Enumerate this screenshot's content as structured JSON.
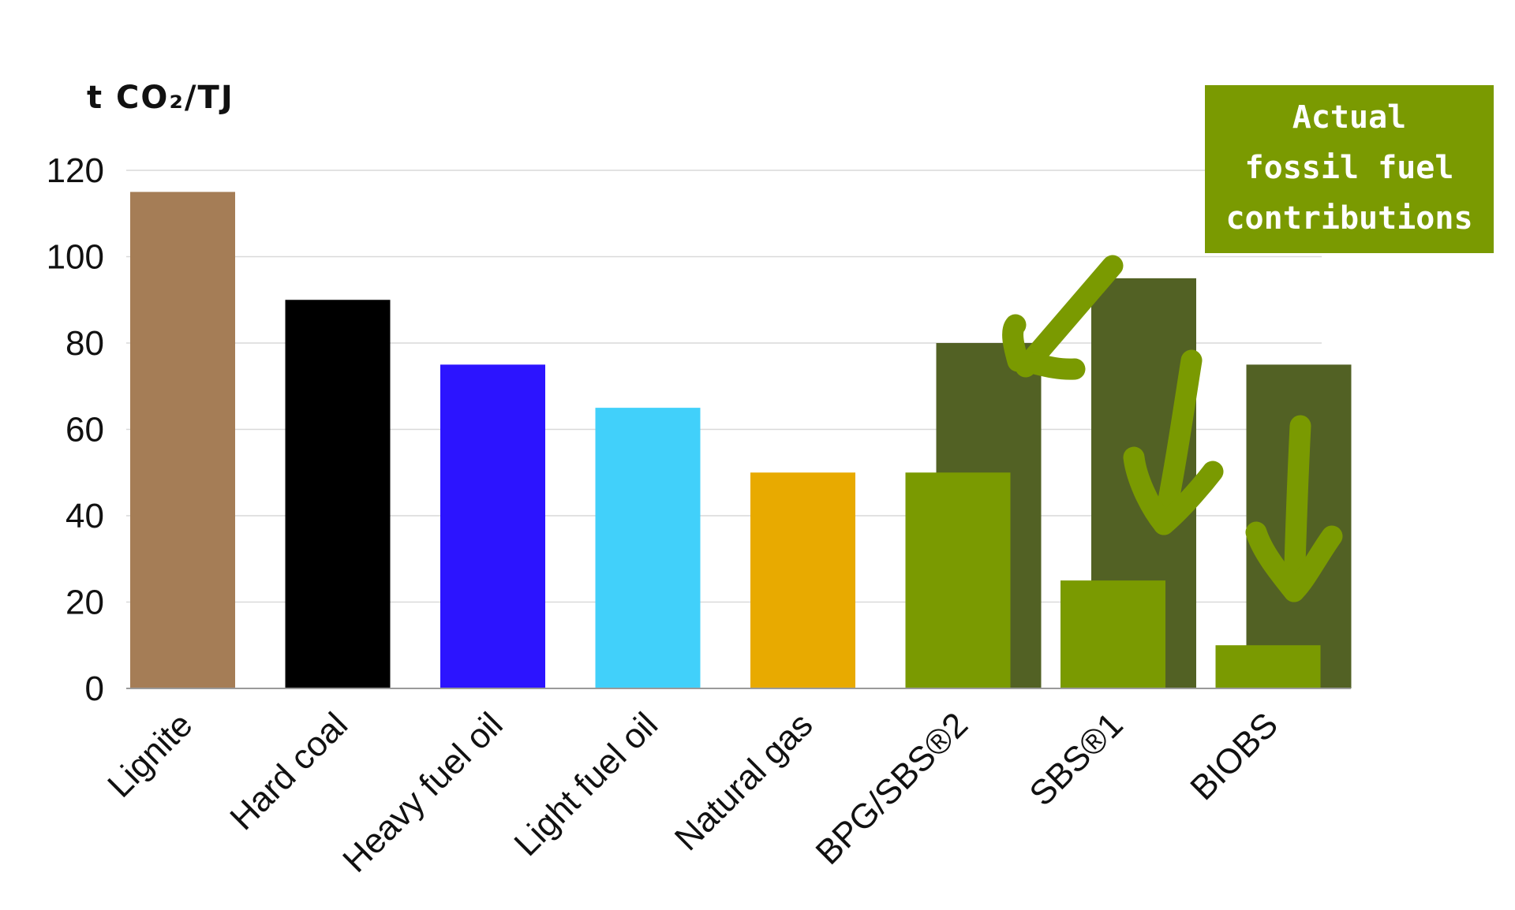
{
  "chart_data": {
    "type": "bar",
    "ylabel": "t CO₂/TJ",
    "ylim": [
      0,
      120
    ],
    "yticks": [
      "0",
      "20",
      "40",
      "60",
      "80",
      "100",
      "120"
    ],
    "grid": true,
    "categories": [
      "Lignite",
      "Hard coal",
      "Heavy fuel oil",
      "Light fuel oil",
      "Natural gas",
      "BPG/SBS®2",
      "SBS®1",
      "BIOBS"
    ],
    "values": [
      115,
      90,
      75,
      65,
      50,
      50,
      25,
      10
    ],
    "colors": [
      "#a57d56",
      "#000000",
      "#2c14ff",
      "#41d0fa",
      "#e8aa00",
      "#7a9a01",
      "#7a9a01",
      "#7a9a01"
    ],
    "reference_bars": [
      {
        "category": "BPG/SBS®2",
        "value": 80
      },
      {
        "category": "SBS®1",
        "value": 95
      },
      {
        "category": "BIOBS",
        "value": 75
      }
    ],
    "reference_color": "#526124",
    "arrow_color": "#7a9a01",
    "callout": {
      "lines": [
        "Actual",
        "fossil fuel",
        "contributions"
      ],
      "background": "#7a9a01"
    }
  }
}
